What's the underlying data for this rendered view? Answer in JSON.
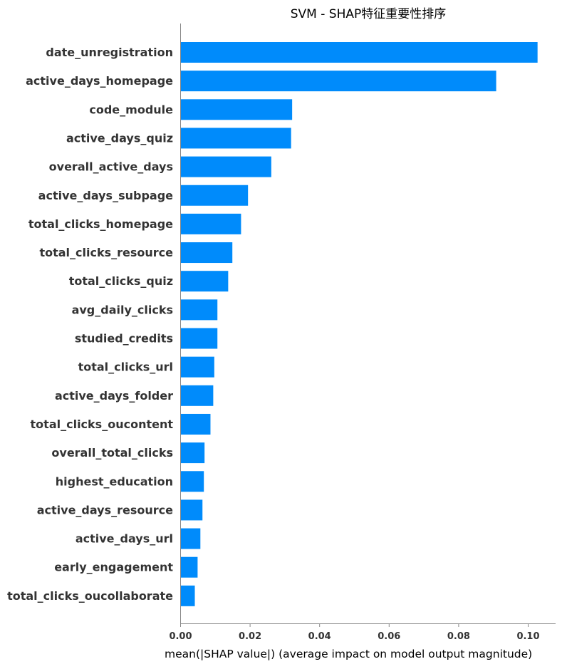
{
  "chart_data": {
    "type": "bar",
    "orientation": "horizontal",
    "title": "SVM - SHAP特征重要性排序",
    "xlabel": "mean(|SHAP value|) (average impact on model output magnitude)",
    "ylabel": "",
    "xlim": [
      0,
      0.107
    ],
    "x_ticks": [
      "0.00",
      "0.02",
      "0.04",
      "0.06",
      "0.08",
      "0.10"
    ],
    "grid": false,
    "bar_color": "#008bfb",
    "categories": [
      "date_unregistration",
      "active_days_homepage",
      "code_module",
      "active_days_quiz",
      "overall_active_days",
      "active_days_subpage",
      "total_clicks_homepage",
      "total_clicks_resource",
      "total_clicks_quiz",
      "avg_daily_clicks",
      "studied_credits",
      "total_clicks_url",
      "active_days_folder",
      "total_clicks_oucontent",
      "overall_total_clicks",
      "highest_education",
      "active_days_resource",
      "active_days_url",
      "early_engagement",
      "total_clicks_oucollaborate"
    ],
    "values": [
      0.1027,
      0.0908,
      0.0321,
      0.0318,
      0.0261,
      0.0194,
      0.0174,
      0.0149,
      0.0137,
      0.0106,
      0.0106,
      0.0097,
      0.0094,
      0.0086,
      0.0069,
      0.0067,
      0.0063,
      0.0057,
      0.0049,
      0.0041
    ]
  }
}
